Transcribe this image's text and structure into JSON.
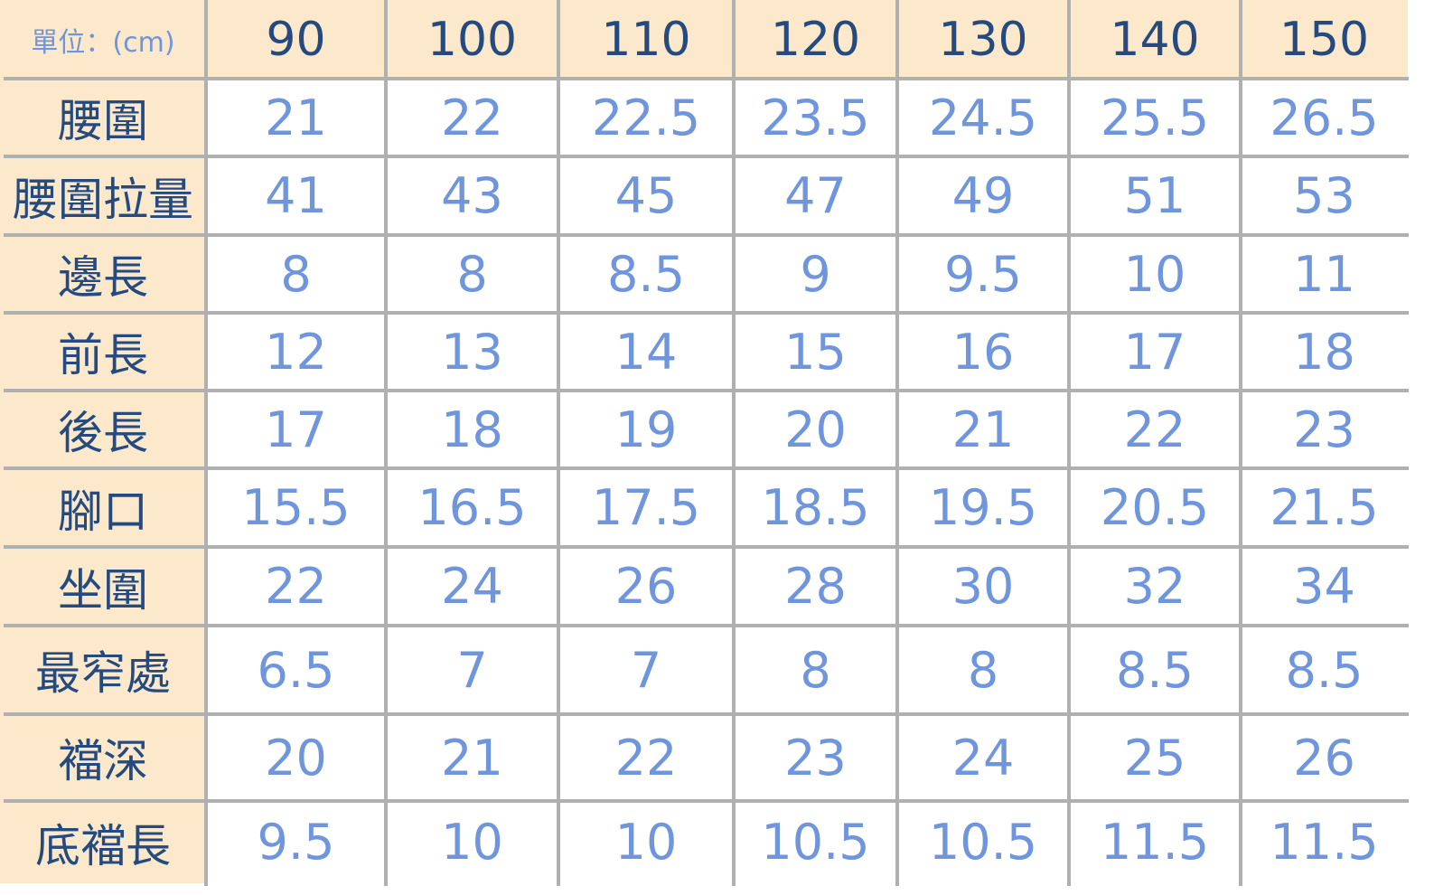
{
  "table": {
    "unit_label": "單位：(cm)",
    "sizes": [
      "90",
      "100",
      "110",
      "120",
      "130",
      "140",
      "150"
    ],
    "rows": [
      {
        "label": "腰圍",
        "values": [
          "21",
          "22",
          "22.5",
          "23.5",
          "24.5",
          "25.5",
          "26.5"
        ]
      },
      {
        "label": "腰圍拉量",
        "values": [
          "41",
          "43",
          "45",
          "47",
          "49",
          "51",
          "53"
        ]
      },
      {
        "label": "邊長",
        "values": [
          "8",
          "8",
          "8.5",
          "9",
          "9.5",
          "10",
          "11"
        ]
      },
      {
        "label": "前長",
        "values": [
          "12",
          "13",
          "14",
          "15",
          "16",
          "17",
          "18"
        ]
      },
      {
        "label": "後長",
        "values": [
          "17",
          "18",
          "19",
          "20",
          "21",
          "22",
          "23"
        ]
      },
      {
        "label": "腳口",
        "values": [
          "15.5",
          "16.5",
          "17.5",
          "18.5",
          "19.5",
          "20.5",
          "21.5"
        ]
      },
      {
        "label": "坐圍",
        "values": [
          "22",
          "24",
          "26",
          "28",
          "30",
          "32",
          "34"
        ]
      },
      {
        "label": "最窄處",
        "values": [
          "6.5",
          "7",
          "7",
          "8",
          "8",
          "8.5",
          "8.5"
        ]
      },
      {
        "label": "襠深",
        "values": [
          "20",
          "21",
          "22",
          "23",
          "24",
          "25",
          "26"
        ]
      },
      {
        "label": "底襠長",
        "values": [
          "9.5",
          "10",
          "10",
          "10.5",
          "10.5",
          "11.5",
          "11.5"
        ]
      }
    ]
  },
  "colors": {
    "header_bg": "#fce9cb",
    "label_text": "#244a80",
    "value_text": "#6f95dc",
    "grid": "#b0b0b0"
  }
}
